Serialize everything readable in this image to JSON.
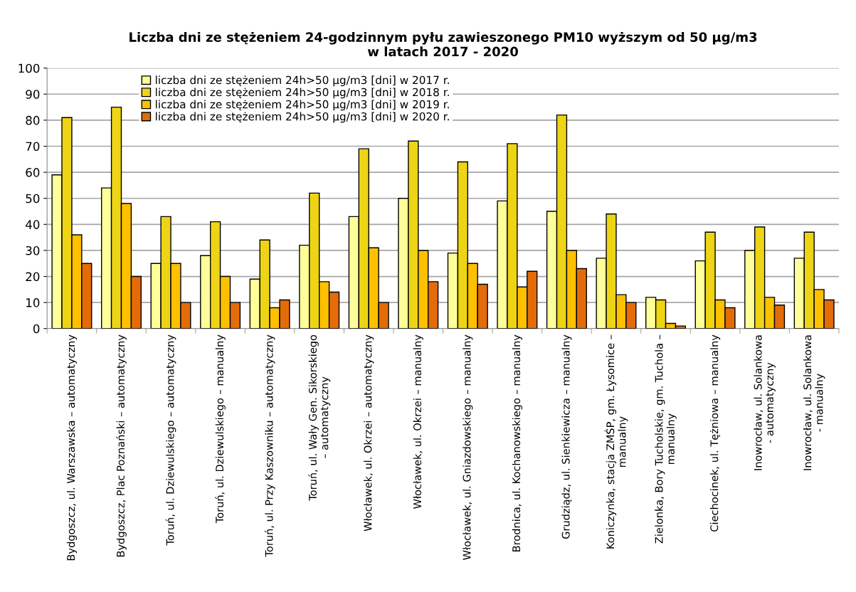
{
  "chart_data": {
    "type": "bar",
    "title": "Liczba dni ze stężeniem 24-godzinnym pyłu zawieszonego PM10 wyższym od 50 µg/m3\nw latach 2017 - 2020",
    "categories": [
      "Bydgoszcz, ul. Warszawska – automatyczny",
      "Bydgoszcz, Plac Poznański – automatyczny",
      "Toruń, ul. Dziewulskiego – automatyczny",
      "Toruń, ul. Dziewulskiego – manualny",
      "Toruń, ul. Przy Kaszowniku – automatyczny",
      "Toruń, ul. Wały Gen. Sikorskiego\n– automatyczny",
      "Włocławek, ul. Okrzei – automatyczny",
      "Włocławek, ul. Okrzei – manualny",
      "Włocławek, ul. Gniazdowskiego – manualny",
      "Brodnica, ul. Kochanowskiego – manualny",
      "Grudziądz, ul. Sienkiewicza – manualny",
      "Koniczynka, stacja ZMŚP, gm. Łysomice –\nmanualny",
      "Zielonka, Bory Tucholskie, gm. Tuchola –\nmanualny",
      "Ciechocinek, ul. Tężniowa – manualny",
      "Inowrocław, ul. Solankowa\n- automatyczny",
      "Inowrocław, ul. Solankowa\n- manualny"
    ],
    "series": [
      {
        "name": "liczba dni ze stężeniem 24h>50 µg/m3 [dni] w 2017 r.",
        "color": "#ffff99",
        "values": [
          59,
          54,
          25,
          28,
          19,
          32,
          43,
          50,
          29,
          49,
          45,
          27,
          12,
          26,
          30,
          27
        ]
      },
      {
        "name": "liczba dni ze stężeniem 24h>50 µg/m3 [dni] w 2018 r.",
        "color": "#edd415",
        "values": [
          81,
          85,
          43,
          41,
          34,
          52,
          69,
          72,
          64,
          71,
          82,
          44,
          11,
          37,
          39,
          37
        ]
      },
      {
        "name": "liczba dni ze stężeniem 24h>50 µg/m3 [dni] w 2019 r.",
        "color": "#ffc000",
        "values": [
          36,
          48,
          25,
          20,
          8,
          18,
          31,
          30,
          25,
          16,
          30,
          13,
          2,
          11,
          12,
          15
        ]
      },
      {
        "name": "liczba dni ze stężeniem 24h>50 µg/m3 [dni] w 2020 r.",
        "color": "#e36c09",
        "values": [
          25,
          20,
          10,
          10,
          11,
          14,
          10,
          18,
          17,
          22,
          23,
          10,
          1,
          8,
          9,
          11
        ]
      }
    ],
    "ylim": [
      0,
      100
    ],
    "yticks": [
      0,
      10,
      20,
      30,
      40,
      50,
      60,
      70,
      80,
      90,
      100
    ],
    "grid": "y",
    "legend": "top left"
  }
}
